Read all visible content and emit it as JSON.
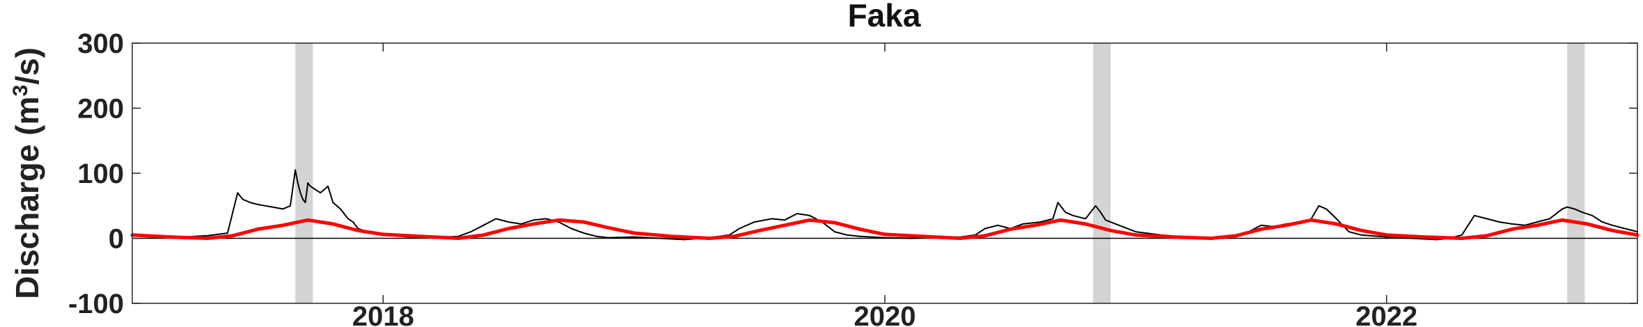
{
  "chart_data": {
    "type": "line",
    "title": "Faka",
    "ylabel": "Discharge (m",
    "ylabel_sup": "3",
    "ylabel_end": "/s)",
    "xlim": [
      2017.0,
      2023.0
    ],
    "ylim": [
      -100,
      300
    ],
    "yticks": [
      300,
      200,
      100,
      0,
      -100
    ],
    "xticks": [
      {
        "value": 2018,
        "label": "2018"
      },
      {
        "value": 2020,
        "label": "2020"
      },
      {
        "value": 2022,
        "label": "2022"
      }
    ],
    "zero_line": true,
    "shaded_regions": [
      [
        2017.65,
        2017.72
      ],
      [
        2020.83,
        2020.9
      ],
      [
        2022.72,
        2022.79
      ]
    ],
    "series": [
      {
        "color": "#000000",
        "x": [
          2017.0,
          2017.1,
          2017.2,
          2017.3,
          2017.38,
          2017.42,
          2017.44,
          2017.47,
          2017.5,
          2017.53,
          2017.56,
          2017.6,
          2017.63,
          2017.65,
          2017.66,
          2017.67,
          2017.68,
          2017.69,
          2017.7,
          2017.71,
          2017.73,
          2017.75,
          2017.78,
          2017.8,
          2017.83,
          2017.86,
          2017.88,
          2017.9,
          2017.95,
          2018.0,
          2018.1,
          2018.2,
          2018.3,
          2018.35,
          2018.4,
          2018.45,
          2018.5,
          2018.55,
          2018.6,
          2018.65,
          2018.7,
          2018.75,
          2018.8,
          2018.85,
          2018.9,
          2019.0,
          2019.1,
          2019.2,
          2019.3,
          2019.38,
          2019.42,
          2019.48,
          2019.55,
          2019.6,
          2019.65,
          2019.7,
          2019.75,
          2019.8,
          2019.85,
          2019.9,
          2019.95,
          2020.0,
          2020.1,
          2020.2,
          2020.3,
          2020.36,
          2020.4,
          2020.45,
          2020.5,
          2020.55,
          2020.62,
          2020.67,
          2020.69,
          2020.72,
          2020.75,
          2020.8,
          2020.84,
          2020.86,
          2020.88,
          2020.92,
          2021.0,
          2021.1,
          2021.2,
          2021.3,
          2021.35,
          2021.4,
          2021.45,
          2021.5,
          2021.55,
          2021.6,
          2021.67,
          2021.7,
          2021.73,
          2021.76,
          2021.8,
          2021.85,
          2021.9,
          2022.0,
          2022.1,
          2022.2,
          2022.25,
          2022.27,
          2022.3,
          2022.35,
          2022.4,
          2022.45,
          2022.5,
          2022.55,
          2022.6,
          2022.65,
          2022.7,
          2022.72,
          2022.75,
          2022.78,
          2022.82,
          2022.86,
          2022.9,
          2022.95,
          2023.0
        ],
        "y": [
          5,
          3,
          2,
          4,
          8,
          70,
          60,
          55,
          52,
          50,
          48,
          45,
          50,
          105,
          85,
          70,
          60,
          55,
          85,
          80,
          75,
          70,
          80,
          55,
          45,
          30,
          25,
          15,
          8,
          5,
          2,
          1,
          3,
          10,
          20,
          30,
          25,
          22,
          28,
          30,
          25,
          15,
          8,
          3,
          1,
          2,
          0,
          -2,
          1,
          5,
          15,
          25,
          30,
          28,
          38,
          35,
          25,
          10,
          5,
          3,
          2,
          1,
          0,
          1,
          2,
          5,
          15,
          20,
          15,
          22,
          25,
          30,
          55,
          40,
          35,
          30,
          50,
          40,
          28,
          22,
          10,
          5,
          2,
          1,
          0,
          3,
          10,
          20,
          18,
          22,
          25,
          30,
          50,
          45,
          30,
          10,
          5,
          2,
          0,
          -2,
          0,
          2,
          5,
          35,
          30,
          25,
          22,
          20,
          25,
          30,
          45,
          48,
          45,
          40,
          35,
          25,
          20,
          15,
          10
        ]
      },
      {
        "color": "#ff0000",
        "x": [
          2017.0,
          2017.15,
          2017.3,
          2017.4,
          2017.5,
          2017.6,
          2017.7,
          2017.8,
          2017.9,
          2018.0,
          2018.15,
          2018.3,
          2018.4,
          2018.5,
          2018.6,
          2018.7,
          2018.8,
          2018.9,
          2019.0,
          2019.15,
          2019.3,
          2019.4,
          2019.5,
          2019.6,
          2019.7,
          2019.8,
          2019.9,
          2020.0,
          2020.15,
          2020.3,
          2020.4,
          2020.5,
          2020.6,
          2020.7,
          2020.8,
          2020.9,
          2021.0,
          2021.15,
          2021.3,
          2021.4,
          2021.5,
          2021.6,
          2021.7,
          2021.8,
          2021.9,
          2022.0,
          2022.15,
          2022.3,
          2022.4,
          2022.5,
          2022.6,
          2022.7,
          2022.8,
          2022.9,
          2023.0
        ],
        "y": [
          5,
          2,
          0,
          4,
          14,
          20,
          28,
          22,
          12,
          6,
          3,
          0,
          5,
          15,
          22,
          28,
          25,
          16,
          8,
          3,
          0,
          3,
          12,
          20,
          28,
          24,
          14,
          6,
          3,
          0,
          4,
          14,
          20,
          28,
          22,
          12,
          5,
          2,
          0,
          4,
          14,
          20,
          28,
          22,
          12,
          5,
          2,
          0,
          4,
          14,
          20,
          28,
          22,
          12,
          5
        ]
      }
    ]
  }
}
